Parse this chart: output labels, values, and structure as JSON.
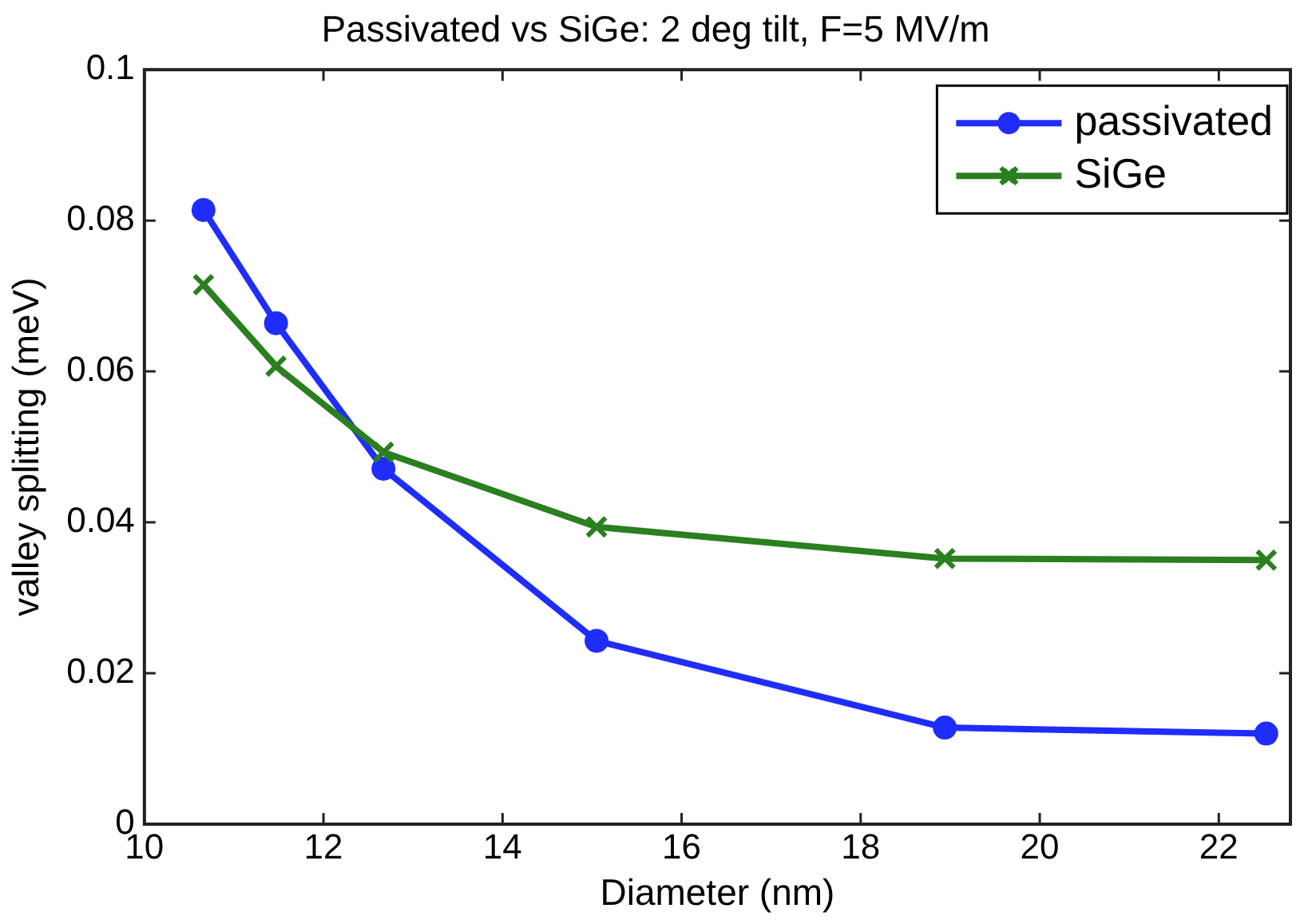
{
  "chart_data": {
    "type": "line",
    "title": "Passivated vs SiGe: 2 deg tilt, F=5 MV/m",
    "xlabel": "Diameter (nm)",
    "ylabel": "valley splitting (meV)",
    "x": [
      10.66,
      11.47,
      12.67,
      15.05,
      18.94,
      22.53
    ],
    "series": [
      {
        "name": "passivated",
        "color": "#1f2dfa",
        "marker": "circle",
        "values": [
          0.0814,
          0.0664,
          0.0471,
          0.0243,
          0.0128,
          0.012
        ]
      },
      {
        "name": "SiGe",
        "color": "#2a7f1f",
        "marker": "cross",
        "values": [
          0.0715,
          0.0607,
          0.0493,
          0.0394,
          0.0352,
          0.035
        ]
      }
    ],
    "xlim": [
      10,
      22.8
    ],
    "xticks": [
      10,
      12,
      14,
      16,
      18,
      20,
      22
    ],
    "ylim": [
      0,
      0.1
    ],
    "yticks": [
      0,
      0.02,
      0.04,
      0.06,
      0.08,
      0.1
    ],
    "grid": false,
    "legend": "top right",
    "line_style": "solid"
  }
}
